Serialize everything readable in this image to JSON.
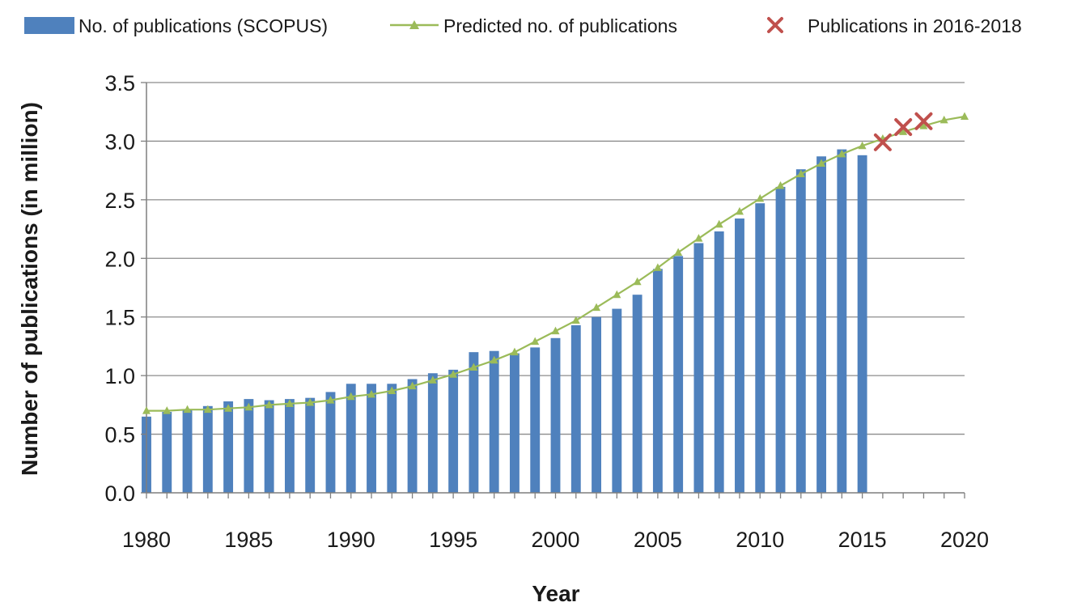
{
  "chart_data": {
    "type": "bar",
    "title": "",
    "xlabel": "Year",
    "ylabel": "Number of publications (in million)",
    "xlim": [
      1980,
      2020
    ],
    "ylim": [
      0,
      3.5
    ],
    "x_ticks": [
      "1980",
      "1985",
      "1990",
      "1995",
      "2000",
      "2005",
      "2010",
      "2015",
      "2020"
    ],
    "y_ticks": [
      "0.0",
      "0.5",
      "1.0",
      "1.5",
      "2.0",
      "2.5",
      "3.0",
      "3.5"
    ],
    "grid": true,
    "legend_position": "top",
    "series": [
      {
        "name": "No. of publications (SCOPUS)",
        "type": "bar",
        "color": "#4F81BD",
        "x": [
          1980,
          1981,
          1982,
          1983,
          1984,
          1985,
          1986,
          1987,
          1988,
          1989,
          1990,
          1991,
          1992,
          1993,
          1994,
          1995,
          1996,
          1997,
          1998,
          1999,
          2000,
          2001,
          2002,
          2003,
          2004,
          2005,
          2006,
          2007,
          2008,
          2009,
          2010,
          2011,
          2012,
          2013,
          2014,
          2015
        ],
        "values": [
          0.65,
          0.69,
          0.71,
          0.74,
          0.78,
          0.8,
          0.79,
          0.8,
          0.81,
          0.86,
          0.93,
          0.93,
          0.93,
          0.97,
          1.02,
          1.05,
          1.2,
          1.21,
          1.19,
          1.24,
          1.32,
          1.43,
          1.5,
          1.57,
          1.69,
          1.91,
          2.02,
          2.13,
          2.23,
          2.34,
          2.47,
          2.61,
          2.76,
          2.87,
          2.93,
          2.88
        ]
      },
      {
        "name": "Predicted no. of publications",
        "type": "line",
        "color": "#9BBB59",
        "marker": "triangle",
        "x": [
          1980,
          1981,
          1982,
          1983,
          1984,
          1985,
          1986,
          1987,
          1988,
          1989,
          1990,
          1991,
          1992,
          1993,
          1994,
          1995,
          1996,
          1997,
          1998,
          1999,
          2000,
          2001,
          2002,
          2003,
          2004,
          2005,
          2006,
          2007,
          2008,
          2009,
          2010,
          2011,
          2012,
          2013,
          2014,
          2015,
          2016,
          2017,
          2018,
          2019,
          2020
        ],
        "values": [
          0.7,
          0.7,
          0.71,
          0.71,
          0.72,
          0.73,
          0.75,
          0.76,
          0.77,
          0.79,
          0.82,
          0.84,
          0.87,
          0.91,
          0.96,
          1.01,
          1.07,
          1.13,
          1.2,
          1.29,
          1.38,
          1.47,
          1.58,
          1.69,
          1.8,
          1.92,
          2.05,
          2.17,
          2.29,
          2.4,
          2.51,
          2.62,
          2.72,
          2.81,
          2.89,
          2.96,
          3.02,
          3.08,
          3.13,
          3.18,
          3.21
        ]
      },
      {
        "name": "Publications in 2016-2018",
        "type": "scatter",
        "color": "#C0504D",
        "marker": "x",
        "x": [
          2016,
          2017,
          2018
        ],
        "values": [
          2.99,
          3.12,
          3.17
        ]
      }
    ]
  }
}
